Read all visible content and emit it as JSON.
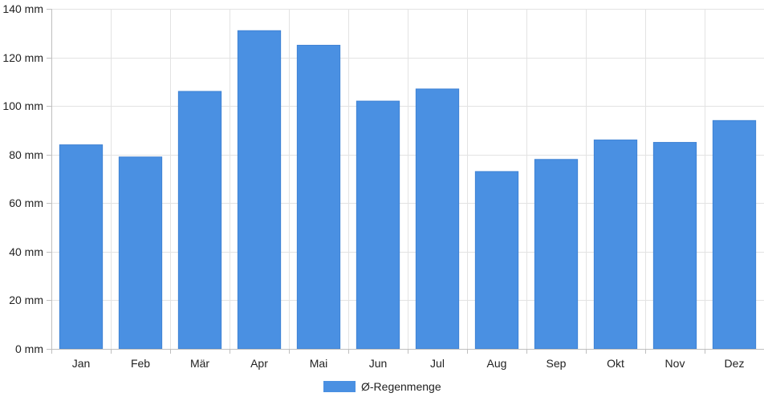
{
  "chart_data": {
    "type": "bar",
    "categories": [
      "Jan",
      "Feb",
      "Mär",
      "Apr",
      "Mai",
      "Jun",
      "Jul",
      "Aug",
      "Sep",
      "Okt",
      "Nov",
      "Dez"
    ],
    "series": [
      {
        "name": "Ø-Regenmenge",
        "color": "#4a90e2",
        "values": [
          84,
          79,
          106,
          131,
          125,
          102,
          107,
          73,
          78,
          86,
          85,
          94
        ]
      }
    ],
    "ylim": [
      0,
      140
    ],
    "y_ticks": [
      0,
      20,
      40,
      60,
      80,
      100,
      120,
      140
    ],
    "y_unit": "mm",
    "grid": true,
    "legend_position": "bottom-center"
  }
}
